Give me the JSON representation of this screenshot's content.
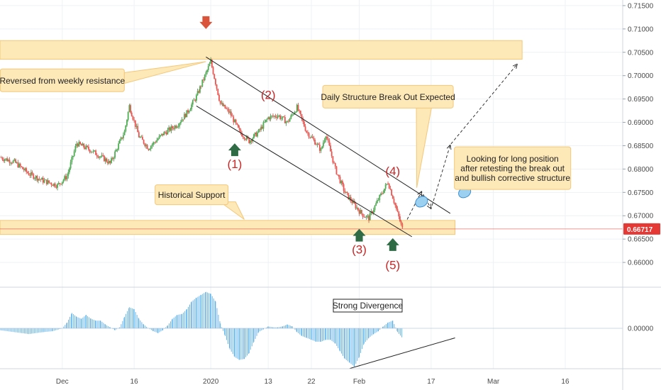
{
  "chart_data": {
    "type": "candlestick",
    "price_axis": {
      "ticks": [
        "0.71500",
        "0.71000",
        "0.70500",
        "0.70000",
        "0.69500",
        "0.69000",
        "0.68500",
        "0.68000",
        "0.67500",
        "0.67000",
        "0.66500",
        "0.66000"
      ],
      "tick_values": [
        0.715,
        0.71,
        0.705,
        0.7,
        0.695,
        0.69,
        0.685,
        0.68,
        0.675,
        0.67,
        0.665,
        0.66
      ],
      "range": [
        0.6547,
        0.7162
      ],
      "current_price": "0.66717",
      "current_price_value": 0.66717
    },
    "time_axis": {
      "ticks": [
        "Dec",
        "16",
        "2020",
        "13",
        "22",
        "Feb",
        "17",
        "Mar",
        "16"
      ],
      "tick_days": [
        0,
        15,
        31,
        43,
        52,
        62,
        77,
        90,
        105
      ],
      "range_days": [
        -13,
        117
      ]
    },
    "price_path": [
      [
        -13,
        0.6825
      ],
      [
        -10,
        0.6815
      ],
      [
        -7,
        0.679
      ],
      [
        -4,
        0.6775
      ],
      [
        -1,
        0.6765
      ],
      [
        1,
        0.6785
      ],
      [
        3,
        0.6855
      ],
      [
        6,
        0.684
      ],
      [
        9,
        0.682
      ],
      [
        10,
        0.6812
      ],
      [
        13,
        0.688
      ],
      [
        14,
        0.6935
      ],
      [
        16,
        0.687
      ],
      [
        18,
        0.6845
      ],
      [
        21,
        0.6875
      ],
      [
        24,
        0.6895
      ],
      [
        26,
        0.692
      ],
      [
        28,
        0.6955
      ],
      [
        30,
        0.7005
      ],
      [
        31,
        0.703
      ],
      [
        32,
        0.6985
      ],
      [
        33,
        0.694
      ],
      [
        35,
        0.692
      ],
      [
        37,
        0.688
      ],
      [
        39,
        0.686
      ],
      [
        41,
        0.688
      ],
      [
        43,
        0.691
      ],
      [
        45,
        0.6915
      ],
      [
        47,
        0.69
      ],
      [
        49,
        0.6932
      ],
      [
        51,
        0.688
      ],
      [
        53,
        0.6855
      ],
      [
        54,
        0.684
      ],
      [
        55,
        0.6875
      ],
      [
        57,
        0.68
      ],
      [
        59,
        0.675
      ],
      [
        62,
        0.671
      ],
      [
        63,
        0.67
      ],
      [
        64,
        0.6695
      ],
      [
        66,
        0.6735
      ],
      [
        68,
        0.6772
      ],
      [
        69,
        0.674
      ],
      [
        70,
        0.6705
      ],
      [
        71,
        0.6672
      ]
    ],
    "zones": [
      {
        "name": "resistance",
        "top": 0.7075,
        "bottom": 0.7035,
        "day_start": -13,
        "day_end": 96
      },
      {
        "name": "support",
        "top": 0.669,
        "bottom": 0.666,
        "day_start": -13,
        "day_end": 82
      }
    ],
    "channel": {
      "upper": [
        [
          30,
          0.704
        ],
        [
          81,
          0.6705
        ]
      ],
      "lower": [
        [
          28,
          0.6935
        ],
        [
          73,
          0.6655
        ]
      ]
    },
    "projection_path": [
      [
        72,
        0.6692
      ],
      [
        75,
        0.6752
      ],
      [
        77,
        0.6715
      ],
      [
        81,
        0.6852
      ],
      [
        95,
        0.7025
      ]
    ],
    "markers": {
      "down_arrows": [
        {
          "day": 30,
          "price": 0.71
        }
      ],
      "up_arrows": [
        {
          "day": 36,
          "price": 0.6855
        },
        {
          "day": 62,
          "price": 0.6672
        },
        {
          "day": 69,
          "price": 0.6652
        }
      ]
    },
    "ellipses": [
      {
        "day": 75,
        "price": 0.673
      },
      {
        "day": 84,
        "price": 0.675
      }
    ],
    "waves": [
      {
        "label": "(1)",
        "day": 36,
        "price": 0.6802
      },
      {
        "label": "(2)",
        "day": 43,
        "price": 0.695
      },
      {
        "label": "(3)",
        "day": 62,
        "price": 0.6619
      },
      {
        "label": "(4)",
        "day": 69,
        "price": 0.6787
      },
      {
        "label": "(5)",
        "day": 69,
        "price": 0.6586
      }
    ],
    "annotations": [
      {
        "lines": [
          "Reversed from weekly resistance"
        ],
        "day": 0,
        "price": 0.699
      },
      {
        "lines": [
          "Daily Structure Break Out Expected"
        ],
        "day": 68,
        "price": 0.6955
      },
      {
        "lines": [
          "Looking for long position",
          "after retesting the break out",
          "and bullish corrective structure"
        ],
        "day": 94,
        "price": 0.6802
      },
      {
        "lines": [
          "Historical Support"
        ],
        "day": 27,
        "price": 0.6745
      }
    ],
    "indicator": {
      "zero_label": "0.00000",
      "annotation": "Strong Divergence",
      "histogram": [
        [
          -13,
          -2
        ],
        [
          -10,
          -4
        ],
        [
          -7,
          -6
        ],
        [
          -4,
          -4
        ],
        [
          -2,
          -3
        ],
        [
          0,
          0
        ],
        [
          1,
          6
        ],
        [
          2,
          16
        ],
        [
          3,
          12
        ],
        [
          4,
          10
        ],
        [
          5,
          14
        ],
        [
          6,
          10
        ],
        [
          7,
          8
        ],
        [
          8,
          8
        ],
        [
          9,
          4
        ],
        [
          10,
          1
        ],
        [
          11,
          -2
        ],
        [
          12,
          1
        ],
        [
          13,
          12
        ],
        [
          14,
          22
        ],
        [
          15,
          20
        ],
        [
          16,
          10
        ],
        [
          17,
          4
        ],
        [
          18,
          0
        ],
        [
          19,
          -3
        ],
        [
          20,
          -5
        ],
        [
          21,
          -2
        ],
        [
          22,
          3
        ],
        [
          23,
          10
        ],
        [
          24,
          14
        ],
        [
          25,
          15
        ],
        [
          26,
          20
        ],
        [
          27,
          28
        ],
        [
          28,
          32
        ],
        [
          29,
          35
        ],
        [
          30,
          38
        ],
        [
          31,
          36
        ],
        [
          32,
          28
        ],
        [
          33,
          5
        ],
        [
          34,
          -8
        ],
        [
          35,
          -22
        ],
        [
          36,
          -30
        ],
        [
          37,
          -33
        ],
        [
          38,
          -32
        ],
        [
          39,
          -26
        ],
        [
          40,
          -14
        ],
        [
          41,
          -4
        ],
        [
          42,
          -1
        ],
        [
          43,
          2
        ],
        [
          44,
          1
        ],
        [
          45,
          1
        ],
        [
          46,
          2
        ],
        [
          47,
          4
        ],
        [
          48,
          2
        ],
        [
          49,
          -4
        ],
        [
          50,
          -8
        ],
        [
          51,
          -10
        ],
        [
          52,
          -12
        ],
        [
          53,
          -14
        ],
        [
          54,
          -14
        ],
        [
          55,
          -12
        ],
        [
          56,
          -12
        ],
        [
          57,
          -16
        ],
        [
          58,
          -24
        ],
        [
          59,
          -32
        ],
        [
          60,
          -36
        ],
        [
          61,
          -40
        ],
        [
          62,
          -30
        ],
        [
          63,
          -16
        ],
        [
          64,
          -10
        ],
        [
          65,
          -6
        ],
        [
          66,
          -3
        ],
        [
          67,
          2
        ],
        [
          68,
          6
        ],
        [
          69,
          8
        ],
        [
          70,
          -4
        ],
        [
          71,
          -10
        ]
      ],
      "divergence_line": [
        [
          60,
          -42
        ],
        [
          82,
          -10
        ]
      ]
    },
    "colors": {
      "up": "#26a69a",
      "up_wick": "#2e7d32",
      "down": "#ef5350",
      "zone_fill": "#fde8b8",
      "zone_stroke": "#f3c87a",
      "histogram": "#5aaee8",
      "price_line": "#e53935",
      "arrow_green": "#2f6b45",
      "arrow_red": "#d9543a",
      "ellipse": "#9cd0f0"
    }
  }
}
